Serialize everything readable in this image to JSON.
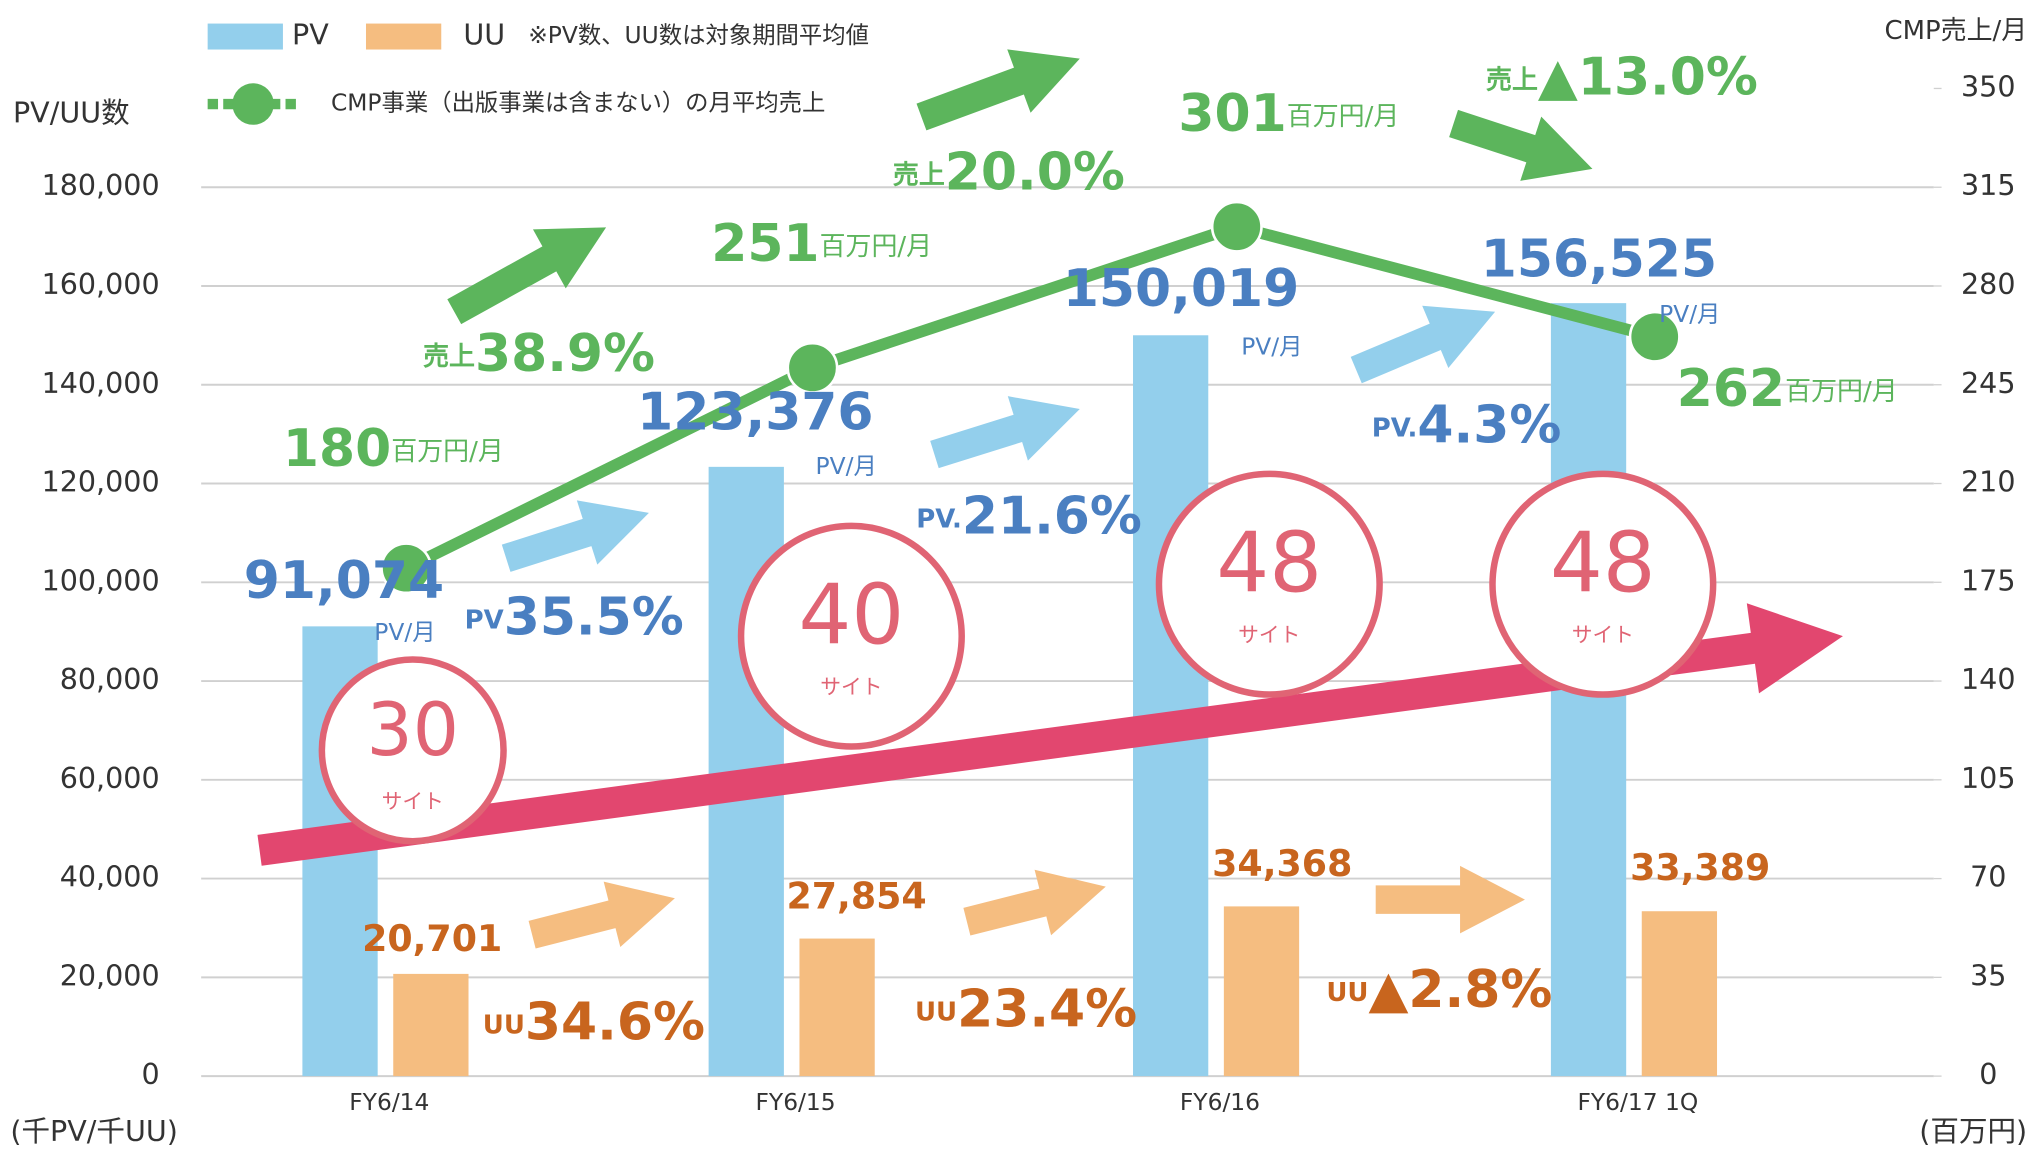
{
  "chart_data": {
    "type": "bar",
    "y_label": "PV/UU数",
    "y_unit_label": "(千PV/千UU)",
    "y2_label": "CMP売上/月",
    "y2_unit_label": "(百万円)",
    "legend_note": "※PV数、UU数は対象期間平均値",
    "categories": [
      "FY6/14",
      "FY6/15",
      "FY6/16",
      "FY6/17 1Q"
    ],
    "ylim": [
      0,
      200000
    ],
    "yticks": [
      0,
      {
        "value": 20000,
        "label": "20,000"
      },
      {
        "value": 40000,
        "label": "40,000"
      },
      {
        "value": 60000,
        "label": "60,000"
      },
      {
        "value": 80000,
        "label": "80,000"
      },
      {
        "value": 100000,
        "label": "100,000"
      },
      {
        "value": 120000,
        "label": "120,000"
      },
      {
        "value": 140000,
        "label": "140,000"
      },
      {
        "value": 160000,
        "label": "160,000"
      },
      {
        "value": 180000,
        "label": "180,000"
      }
    ],
    "y2lim": [
      0,
      350
    ],
    "y2ticks": [
      0,
      35,
      70,
      105,
      140,
      175,
      210,
      245,
      280,
      315,
      350
    ],
    "grid": true,
    "series": [
      {
        "name": "PV",
        "color": "#93cfec",
        "values": [
          91074,
          123376,
          150019,
          156525
        ],
        "value_labels": [
          "91,074",
          "123,376",
          "150,019",
          "156,525"
        ],
        "unit": "PV/月",
        "label_color": "#4a7fc1"
      },
      {
        "name": "UU",
        "color": "#f5bd80",
        "values": [
          20701,
          27854,
          34368,
          33389
        ],
        "value_labels": [
          "20,701",
          "27,854",
          "34,368",
          "33,389"
        ],
        "label_color": "#c8651e"
      },
      {
        "name": "CMP事業（出版事業は含まない）の月平均売上",
        "type": "line",
        "axis": "y2",
        "color": "#5cb55c",
        "values": [
          180,
          251,
          301,
          262
        ],
        "unit": "百万円/月"
      }
    ],
    "sites": {
      "values": [
        30,
        40,
        48,
        48
      ],
      "unit": "サイト",
      "color": "#e06474"
    },
    "growth": {
      "pv": [
        {
          "prefix": "PV",
          "text": "35.5%"
        },
        {
          "prefix": "PV.",
          "text": "21.6%"
        },
        {
          "prefix": "PV.",
          "text": "4.3%"
        }
      ],
      "uu": [
        {
          "prefix": "UU",
          "text": "34.6%"
        },
        {
          "prefix": "UU",
          "text": "23.4%"
        },
        {
          "prefix": "UU",
          "text": "▲2.8%"
        }
      ],
      "sales": [
        {
          "prefix": "売上",
          "text": "38.9%"
        },
        {
          "prefix": "売上",
          "text": "20.0%"
        },
        {
          "prefix": "売上",
          "text": "▲13.0%"
        }
      ]
    }
  }
}
